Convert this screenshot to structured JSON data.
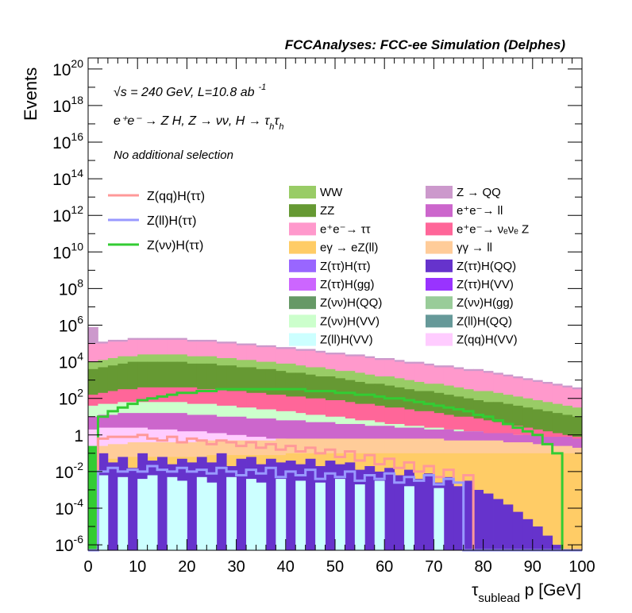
{
  "chart_data": {
    "type": "area",
    "title": "FCCAnalyses: FCC-ee Simulation (Delphes)",
    "xlabel_main": "τ",
    "xlabel_sub": "sublead",
    "xlabel_rest": " p [GeV]",
    "ylabel": "Events",
    "xlim": [
      0,
      100
    ],
    "ylim_log10": [
      -6.3,
      20.6
    ],
    "log_y": true,
    "x_ticks": [
      0,
      10,
      20,
      30,
      40,
      50,
      60,
      70,
      80,
      90,
      100
    ],
    "y_ticks": [
      {
        "base": "10",
        "exp": "20",
        "value": 20
      },
      {
        "base": "10",
        "exp": "18",
        "value": 18
      },
      {
        "base": "10",
        "exp": "16",
        "value": 16
      },
      {
        "base": "10",
        "exp": "14",
        "value": 14
      },
      {
        "base": "10",
        "exp": "12",
        "value": 12
      },
      {
        "base": "10",
        "exp": "10",
        "value": 10
      },
      {
        "base": "10",
        "exp": "8",
        "value": 8
      },
      {
        "base": "10",
        "exp": "6",
        "value": 6
      },
      {
        "base": "10",
        "exp": "4",
        "value": 4
      },
      {
        "base": "10",
        "exp": "2",
        "value": 2
      },
      {
        "base": "1",
        "exp": "",
        "value": 0
      },
      {
        "base": "10",
        "exp": "-2",
        "value": -2
      },
      {
        "base": "10",
        "exp": "-4",
        "value": -4
      },
      {
        "base": "10",
        "exp": "-6",
        "value": -6
      }
    ],
    "annotations": {
      "energy": "√s = 240 GeV, L=10.8 ab",
      "energy_exp": "-1",
      "process": "e⁺e⁻ → Z H, Z → νν, H → τ",
      "process_sub1": "h",
      "process_mid": "τ",
      "process_sub2": "h",
      "selection": "No additional selection"
    },
    "legend_lines": [
      {
        "label": "Z(qq)H(ττ)",
        "color": "#ff9999"
      },
      {
        "label": "Z(ll)H(ττ)",
        "color": "#9999ff"
      },
      {
        "label": "Z(νν)H(ττ)",
        "color": "#33cc33"
      }
    ],
    "legend_col1": [
      {
        "label": "WW",
        "color": "#99cc66"
      },
      {
        "label": "ZZ",
        "color": "#669933"
      },
      {
        "label": "e⁺e⁻→ ττ",
        "color": "#ff99cc"
      },
      {
        "label": "eγ → eZ(ll)",
        "color": "#ffcc66"
      },
      {
        "label": "Z(ττ)H(ττ)",
        "color": "#9966ff"
      },
      {
        "label": "Z(ττ)H(gg)",
        "color": "#cc66ff"
      },
      {
        "label": "Z(νν)H(QQ)",
        "color": "#669966"
      },
      {
        "label": "Z(νν)H(VV)",
        "color": "#ccffcc"
      },
      {
        "label": "Z(ll)H(VV)",
        "color": "#ccffff"
      }
    ],
    "legend_col2": [
      {
        "label": "Z → QQ",
        "color": "#cc99cc"
      },
      {
        "label": "e⁺e⁻→ ll",
        "color": "#cc66cc"
      },
      {
        "label": "e⁺e⁻→ νₑνₑ Z",
        "color": "#ff6699"
      },
      {
        "label": "γγ → ll",
        "color": "#ffcc99"
      },
      {
        "label": "Z(ττ)H(QQ)",
        "color": "#6633cc"
      },
      {
        "label": "Z(ττ)H(VV)",
        "color": "#9933ff"
      },
      {
        "label": "Z(νν)H(gg)",
        "color": "#99cc99"
      },
      {
        "label": "Z(ll)H(QQ)",
        "color": "#669999"
      },
      {
        "label": "Z(qq)H(VV)",
        "color": "#ffccff"
      }
    ],
    "bin_width": 2,
    "stack_totals_log10": [
      {
        "name": "Z → QQ",
        "color": "#cc99cc",
        "values": [
          5.9,
          5.1,
          5.2,
          5.2,
          5.3,
          5.3,
          5.3,
          5.3,
          5.3,
          5.3,
          5.2,
          5.2,
          5.2,
          5.1,
          5.1,
          5.0,
          5.0,
          4.9,
          4.9,
          4.8,
          4.8,
          4.7,
          4.7,
          4.6,
          4.5,
          4.5,
          4.4,
          4.4,
          4.3,
          4.2,
          4.2,
          4.1,
          4.0,
          4.0,
          3.9,
          3.8,
          3.8,
          3.7,
          3.6,
          3.6,
          3.5,
          3.4,
          3.3,
          3.2,
          3.1,
          3.0,
          2.9,
          2.8,
          2.7,
          2.6
        ]
      },
      {
        "name": "e⁺e⁻→ ττ",
        "color": "#ff99cc",
        "values": [
          5.0,
          5.0,
          5.1,
          5.1,
          5.2,
          5.2,
          5.2,
          5.2,
          5.2,
          5.2,
          5.1,
          5.1,
          5.1,
          5.0,
          5.0,
          4.9,
          4.9,
          4.8,
          4.8,
          4.7,
          4.7,
          4.6,
          4.6,
          4.5,
          4.4,
          4.4,
          4.3,
          4.3,
          4.2,
          4.1,
          4.1,
          4.0,
          3.9,
          3.9,
          3.8,
          3.7,
          3.7,
          3.6,
          3.5,
          3.5,
          3.4,
          3.3,
          3.2,
          3.1,
          3.0,
          2.9,
          2.8,
          2.7,
          2.6,
          2.5
        ]
      },
      {
        "name": "WW",
        "color": "#99cc66",
        "values": [
          4.0,
          4.1,
          4.2,
          4.3,
          4.3,
          4.4,
          4.4,
          4.4,
          4.4,
          4.4,
          4.3,
          4.3,
          4.3,
          4.2,
          4.2,
          4.1,
          4.1,
          4.0,
          4.0,
          3.9,
          3.9,
          3.8,
          3.7,
          3.7,
          3.6,
          3.5,
          3.5,
          3.4,
          3.3,
          3.2,
          3.2,
          3.1,
          3.0,
          2.9,
          2.8,
          2.8,
          2.7,
          2.6,
          2.5,
          2.4,
          2.4,
          2.3,
          2.2,
          2.1,
          2.0,
          1.9,
          1.8,
          1.7,
          1.6,
          1.5
        ]
      },
      {
        "name": "ZZ",
        "color": "#669933",
        "values": [
          3.6,
          3.7,
          3.8,
          3.9,
          4.0,
          4.0,
          4.0,
          4.0,
          4.0,
          4.0,
          3.9,
          3.9,
          3.9,
          3.8,
          3.8,
          3.7,
          3.7,
          3.6,
          3.6,
          3.5,
          3.4,
          3.4,
          3.3,
          3.2,
          3.2,
          3.1,
          3.0,
          2.9,
          2.8,
          2.8,
          2.7,
          2.6,
          2.5,
          2.4,
          2.4,
          2.3,
          2.2,
          2.1,
          2.0,
          1.9,
          1.8,
          1.8,
          1.7,
          1.6,
          1.5,
          1.4,
          1.3,
          1.2,
          1.1,
          1.0
        ]
      },
      {
        "name": "e⁺e⁻→ νₑνₑ Z",
        "color": "#ff6699",
        "values": [
          2.2,
          2.3,
          2.4,
          2.5,
          2.5,
          2.6,
          2.6,
          2.6,
          2.6,
          2.6,
          2.6,
          2.5,
          2.5,
          2.5,
          2.4,
          2.4,
          2.3,
          2.3,
          2.2,
          2.2,
          2.1,
          2.1,
          2.0,
          2.0,
          1.9,
          1.9,
          1.8,
          1.7,
          1.7,
          1.6,
          1.5,
          1.5,
          1.4,
          1.3,
          1.3,
          1.2,
          1.1,
          1.0,
          1.0,
          0.9,
          0.8,
          0.7,
          0.6,
          0.5,
          0.4,
          0.3,
          0.2,
          0.1,
          0.0,
          -0.1
        ]
      },
      {
        "name": "Z(νν)H(VV)",
        "color": "#ccffcc",
        "values": [
          1.6,
          1.7,
          1.7,
          1.8,
          1.8,
          1.8,
          1.8,
          1.8,
          1.8,
          1.8,
          1.7,
          1.7,
          1.7,
          1.6,
          1.6,
          1.5,
          1.5,
          1.4,
          1.4,
          1.3,
          1.3,
          1.2,
          1.1,
          1.1,
          1.0,
          1.0,
          0.9,
          0.8,
          0.8,
          0.7,
          0.6,
          0.6,
          0.5,
          0.5,
          0.4,
          0.4,
          0.3,
          0.3,
          0.2,
          0.2,
          0.1,
          0.1,
          0.0,
          0.0,
          -0.1,
          -0.1,
          -0.2,
          -0.2,
          -0.3,
          -0.3
        ]
      },
      {
        "name": "e⁺e⁻→ ll",
        "color": "#cc66cc",
        "values": [
          1.0,
          1.1,
          1.1,
          1.2,
          1.2,
          1.2,
          1.2,
          1.2,
          1.2,
          1.2,
          1.1,
          1.1,
          1.1,
          1.0,
          1.0,
          1.0,
          0.9,
          0.9,
          0.9,
          0.8,
          0.8,
          0.8,
          0.7,
          0.7,
          0.7,
          0.6,
          0.6,
          0.6,
          0.5,
          0.5,
          0.5,
          0.4,
          0.4,
          0.4,
          0.3,
          0.3,
          0.3,
          0.2,
          0.2,
          0.2,
          0.1,
          0.1,
          0.1,
          0.0,
          0.0,
          0.0,
          -0.1,
          -0.1,
          -0.1,
          -0.2
        ]
      },
      {
        "name": "Z(qq)H(VV)",
        "color": "#ffccff",
        "values": [
          0.3,
          0.4,
          0.4,
          0.4,
          0.4,
          0.4,
          0.3,
          0.3,
          0.3,
          0.2,
          0.2,
          0.2,
          0.1,
          0.1,
          0.0,
          0.0,
          -0.1,
          -0.1,
          -0.2,
          -0.2,
          -0.3,
          -0.3,
          -0.4,
          -0.4,
          -0.5,
          -0.5,
          -0.6,
          -0.6,
          -0.7,
          -0.7,
          -0.8,
          -0.8,
          -0.9,
          -0.9,
          -1.0,
          -1.0,
          -1.1,
          -1.1,
          -1.2,
          -1.2,
          -1.3,
          -1.3,
          -1.4,
          -1.4,
          -1.5,
          -1.5,
          -1.6,
          -1.6,
          -1.7,
          -1.7
        ]
      },
      {
        "name": "γγ → ll",
        "color": "#ffcc99",
        "values": [
          -0.8,
          -0.6,
          -0.5,
          -0.5,
          -0.4,
          -0.4,
          -0.4,
          -0.4,
          -0.4,
          -0.4,
          -0.4,
          -0.3,
          -0.3,
          -0.3,
          -0.3,
          -0.3,
          -0.3,
          -0.3,
          -0.3,
          -0.2,
          -0.2,
          -0.2,
          -0.2,
          -0.2,
          -0.2,
          -0.2,
          -0.2,
          -0.2,
          -0.2,
          -0.2,
          -0.2,
          -0.2,
          -0.2,
          -0.2,
          -0.2,
          -0.2,
          -0.3,
          -0.3,
          -0.3,
          -0.3,
          -0.3,
          -0.3,
          -0.4,
          -0.4,
          -0.4,
          -0.5,
          -0.5,
          -0.6,
          -0.6,
          -0.7
        ]
      },
      {
        "name": "eγ → eZ(ll)",
        "color": "#ffcc66",
        "values": [
          -1.5,
          -1.4,
          -1.3,
          -1.3,
          -1.2,
          -1.2,
          -1.2,
          -1.2,
          -1.2,
          -1.2,
          -1.2,
          -1.2,
          -1.1,
          -1.1,
          -1.1,
          -1.1,
          -1.1,
          -1.1,
          -1.1,
          -1.1,
          -1.0,
          -1.0,
          -1.0,
          -1.0,
          -1.0,
          -1.0,
          -1.0,
          -1.0,
          -1.0,
          -1.0,
          -1.0,
          -1.0,
          -1.0,
          -1.0,
          -1.0,
          -1.0,
          -1.0,
          -1.0,
          -1.0,
          -1.0,
          -1.0,
          -1.0,
          -1.0,
          -1.0,
          -1.0,
          -1.0,
          -1.0,
          -1.0,
          -1.0,
          -1.0
        ]
      },
      {
        "name": "Z(ττ)H(QQ)",
        "color": "#6633cc",
        "values": [
          -1.6,
          -1.0,
          -1.5,
          -1.2,
          -1.8,
          -1.0,
          -1.4,
          -1.2,
          -1.6,
          -1.3,
          -1.5,
          -1.2,
          -1.5,
          -1.0,
          -1.7,
          -1.3,
          -1.2,
          -1.6,
          -1.3,
          -1.5,
          -1.4,
          -1.6,
          -1.3,
          -1.7,
          -1.4,
          -1.6,
          -1.5,
          -1.9,
          -1.7,
          -2.0,
          -1.8,
          -2.2,
          -1.9,
          -2.4,
          -2.1,
          -2.6,
          -2.3,
          -2.8,
          -2.5,
          -3.0,
          -3.2,
          -3.5,
          -3.8,
          -4.2,
          -4.6,
          -5.0,
          -5.5,
          -6.0,
          -6.3,
          -6.3
        ]
      },
      {
        "name": "Z(ll)H(VV)",
        "color": "#ccffff",
        "values": [
          -6.3,
          -2.2,
          -6.3,
          -2.3,
          -6.3,
          -2.4,
          -2.2,
          -6.3,
          -2.3,
          -2.5,
          -6.3,
          -2.3,
          -2.6,
          -6.3,
          -2.3,
          -6.3,
          -2.4,
          -2.6,
          -6.3,
          -2.4,
          -6.3,
          -2.5,
          -6.3,
          -2.6,
          -6.3,
          -2.4,
          -6.3,
          -2.7,
          -6.3,
          -2.5,
          -6.3,
          -6.3,
          -2.8,
          -6.3,
          -6.3,
          -2.9,
          -6.3,
          -6.3,
          -6.3,
          -6.3,
          -6.3,
          -6.3,
          -6.3,
          -6.3,
          -6.3,
          -6.3,
          -6.3,
          -6.3,
          -6.3,
          -6.3
        ]
      }
    ],
    "green_bar_value_log10": -0.6,
    "line_series_log10": [
      {
        "name": "Z(νν)H(ττ)",
        "color": "#33cc33",
        "values": [
          -6.3,
          1.0,
          1.3,
          1.5,
          1.7,
          1.9,
          2.0,
          2.1,
          2.2,
          2.3,
          2.3,
          2.4,
          2.4,
          2.5,
          2.5,
          2.5,
          2.5,
          2.5,
          2.5,
          2.5,
          2.5,
          2.5,
          2.4,
          2.4,
          2.4,
          2.3,
          2.3,
          2.2,
          2.2,
          2.1,
          2.0,
          2.0,
          1.9,
          1.8,
          1.7,
          1.6,
          1.5,
          1.4,
          1.3,
          1.1,
          1.0,
          0.8,
          0.6,
          0.4,
          0.2,
          0.0,
          -0.5,
          -1.0,
          -6.3,
          -6.3
        ]
      },
      {
        "name": "Z(qq)H(ττ)",
        "color": "#ff9999",
        "values": [
          -6.3,
          -0.2,
          -0.1,
          -0.1,
          -0.1,
          0.0,
          -0.2,
          -0.3,
          -0.1,
          -0.4,
          -0.2,
          -0.3,
          -0.5,
          -0.3,
          -0.4,
          -0.6,
          -0.4,
          -0.7,
          -0.5,
          -0.8,
          -0.6,
          -0.9,
          -0.7,
          -1.0,
          -0.8,
          -1.2,
          -0.9,
          -1.4,
          -1.1,
          -1.6,
          -1.3,
          -1.8,
          -1.5,
          -2.0,
          -1.7,
          -2.3,
          -1.9,
          -2.6,
          -2.2,
          -6.3,
          -6.3,
          -6.3,
          -6.3,
          -6.3,
          -6.3,
          -6.3,
          -6.3,
          -6.3,
          -6.3,
          -6.3
        ]
      },
      {
        "name": "Z(ll)H(ττ)",
        "color": "#9999ff",
        "values": [
          -6.3,
          -2.0,
          -1.8,
          -2.0,
          -1.9,
          -2.0,
          -1.7,
          -1.9,
          -2.0,
          -1.8,
          -2.0,
          -1.9,
          -2.1,
          -1.8,
          -2.0,
          -2.2,
          -1.9,
          -2.1,
          -1.8,
          -2.3,
          -2.0,
          -2.2,
          -1.9,
          -2.4,
          -2.1,
          -2.3,
          -2.0,
          -2.5,
          -2.2,
          -2.4,
          -2.1,
          -2.6,
          -2.3,
          -2.5,
          -2.2,
          -2.7,
          -2.4,
          -2.6,
          -6.3,
          -6.3,
          -6.3,
          -6.3,
          -6.3,
          -6.3,
          -6.3,
          -6.3,
          -6.3,
          -6.3,
          -6.3,
          -6.3
        ]
      }
    ]
  }
}
